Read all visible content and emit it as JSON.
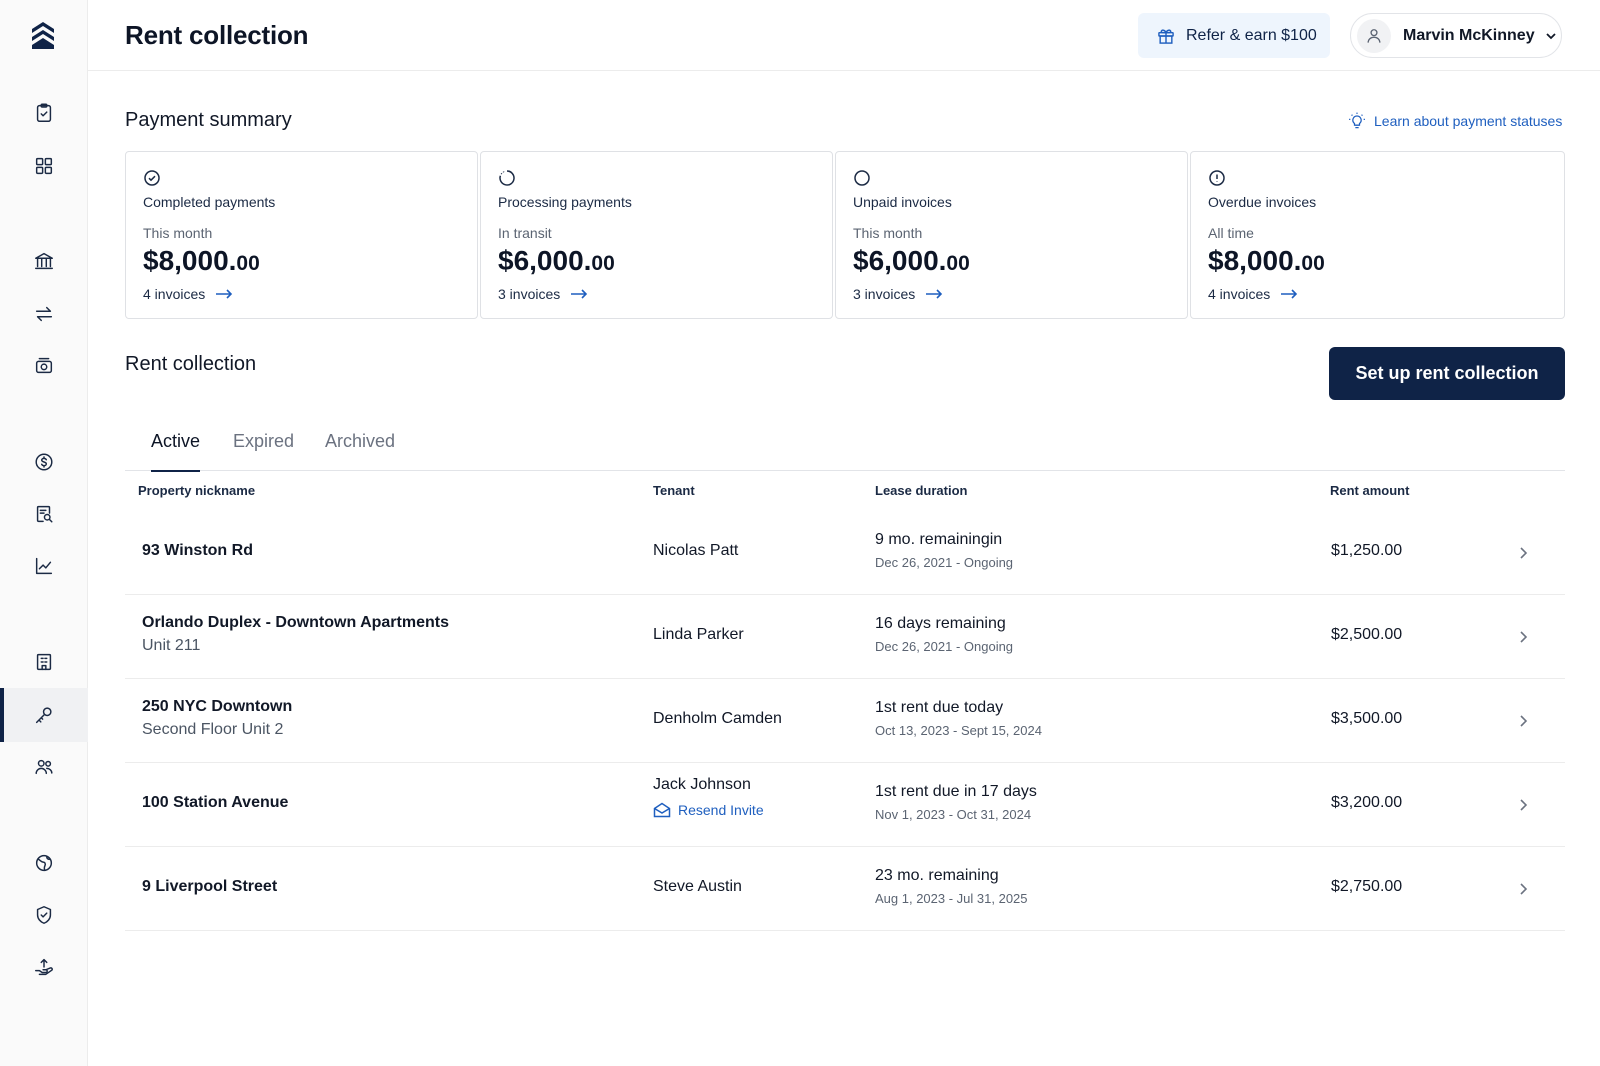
{
  "header": {
    "title": "Rent collection",
    "refer_label": "Refer & earn $100",
    "user_name": "Marvin McKinney"
  },
  "sidebar": {
    "items": [
      {
        "icon": "clipboard-check-icon"
      },
      {
        "icon": "grid-icon"
      },
      {
        "icon": "bank-icon"
      },
      {
        "icon": "transfer-arrows-icon"
      },
      {
        "icon": "cash-icon"
      },
      {
        "icon": "dollar-circle-icon"
      },
      {
        "icon": "document-search-icon"
      },
      {
        "icon": "chart-line-icon"
      },
      {
        "icon": "building-icon"
      },
      {
        "icon": "key-icon",
        "active": true
      },
      {
        "icon": "users-icon"
      },
      {
        "icon": "globe-icon"
      },
      {
        "icon": "shield-check-icon"
      },
      {
        "icon": "hand-upload-icon"
      }
    ]
  },
  "summary": {
    "title": "Payment summary",
    "learn_link": "Learn about payment statuses",
    "cards": [
      {
        "icon": "check-circle-icon",
        "title": "Completed payments",
        "period": "This month",
        "amount_main": "$8,000.",
        "amount_cents": "00",
        "count": "4 invoices"
      },
      {
        "icon": "processing-circle-icon",
        "title": "Processing payments",
        "period": "In transit",
        "amount_main": "$6,000.",
        "amount_cents": "00",
        "count": "3 invoices"
      },
      {
        "icon": "empty-circle-icon",
        "title": "Unpaid invoices",
        "period": "This month",
        "amount_main": "$6,000.",
        "amount_cents": "00",
        "count": "3 invoices"
      },
      {
        "icon": "alert-circle-icon",
        "title": "Overdue invoices",
        "period": "All time",
        "amount_main": "$8,000.",
        "amount_cents": "00",
        "count": "4 invoices"
      }
    ]
  },
  "rent": {
    "title": "Rent collection",
    "setup_label": "Set up rent collection",
    "tabs": [
      {
        "label": "Active",
        "active": true
      },
      {
        "label": "Expired"
      },
      {
        "label": "Archived"
      }
    ],
    "columns": [
      "Property nickname",
      "Tenant",
      "Lease duration",
      "Rent amount"
    ],
    "rows": [
      {
        "name": "93 Winston Rd",
        "unit": "",
        "tenant": "Nicolas Patt",
        "resend": "",
        "status": "9 mo. remainingin",
        "dates": "Dec 26, 2021 - Ongoing",
        "amount": "$1,250.00"
      },
      {
        "name": "Orlando Duplex - Downtown Apartments",
        "unit": "Unit 211",
        "tenant": "Linda Parker",
        "resend": "",
        "status": "16 days remaining",
        "dates": "Dec 26, 2021 - Ongoing",
        "amount": "$2,500.00"
      },
      {
        "name": "250 NYC Downtown",
        "unit": "Second Floor Unit 2",
        "tenant": "Denholm Camden",
        "resend": "",
        "status": "1st rent due today",
        "dates": "Oct 13, 2023 - Sept 15, 2024",
        "amount": "$3,500.00"
      },
      {
        "name": "100 Station Avenue",
        "unit": "",
        "tenant": "Jack Johnson",
        "resend": "Resend Invite",
        "status": "1st rent due in 17 days",
        "dates": "Nov 1, 2023 - Oct 31, 2024",
        "amount": "$3,200.00"
      },
      {
        "name": "9 Liverpool Street",
        "unit": "",
        "tenant": "Steve Austin",
        "resend": "",
        "status": "23 mo. remaining",
        "dates": "Aug 1, 2023 - Jul 31, 2025",
        "amount": "$2,750.00"
      }
    ]
  },
  "colors": {
    "navy": "#0f2347",
    "link_blue": "#1f5fbf",
    "refer_bg": "#eef5fd"
  }
}
